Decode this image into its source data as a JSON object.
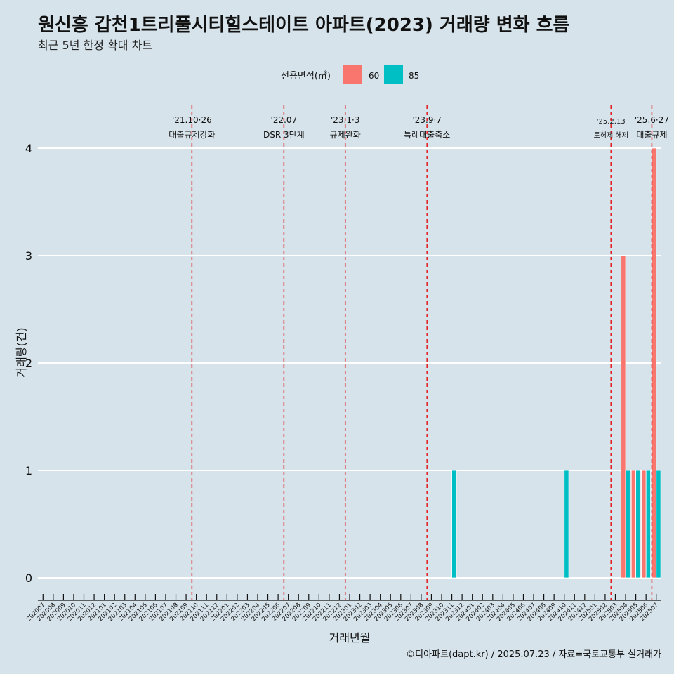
{
  "title": "원신흥 갑천1트리풀시티힐스테이트 아파트(2023) 거래량 변화 흐름",
  "subtitle": "최근 5년 한정 확대 차트",
  "caption": "©디아파트(dapt.kr) / 2025.07.23 / 자료=국토교통부 실거래가",
  "colors": {
    "background": "#d6e3ea",
    "series_60": "#f8766d",
    "series_85": "#00bfc4",
    "event_line": "#e41a1c",
    "grid": "#ffffff"
  },
  "chart_data": {
    "type": "bar",
    "xlabel": "거래년월",
    "ylabel": "거래량(건)",
    "legend_title": "전용면적(㎡)",
    "legend_position": "top",
    "ylim": [
      0,
      4
    ],
    "yticks": [
      0,
      1,
      2,
      3,
      4
    ],
    "grid": "horizontal",
    "categories": [
      "202007",
      "202008",
      "202009",
      "202010",
      "202011",
      "202012",
      "202101",
      "202102",
      "202103",
      "202104",
      "202105",
      "202106",
      "202107",
      "202108",
      "202109",
      "202110",
      "202111",
      "202112",
      "202201",
      "202202",
      "202203",
      "202204",
      "202205",
      "202206",
      "202207",
      "202208",
      "202209",
      "202210",
      "202211",
      "202212",
      "202301",
      "202302",
      "202303",
      "202304",
      "202305",
      "202306",
      "202307",
      "202308",
      "202309",
      "202310",
      "202311",
      "202312",
      "202401",
      "202402",
      "202403",
      "202404",
      "202405",
      "202406",
      "202407",
      "202408",
      "202409",
      "202410",
      "202411",
      "202412",
      "202501",
      "202502",
      "202503",
      "202504",
      "202505",
      "202506",
      "202507"
    ],
    "series": [
      {
        "name": "60",
        "color": "#f8766d",
        "values": {
          "202504": 3,
          "202505": 1,
          "202506": 1,
          "202507": 4
        }
      },
      {
        "name": "85",
        "color": "#00bfc4",
        "values": {
          "202311": 1,
          "202410": 1,
          "202504": 1,
          "202505": 1,
          "202506": 1,
          "202507": 1
        }
      }
    ],
    "events": [
      {
        "date": "'21.10·26",
        "label": "대출규제강화",
        "x": "202110"
      },
      {
        "date": "'22.07",
        "label": "DSR 3단계",
        "x": "202207"
      },
      {
        "date": "'23.1·3",
        "label": "규제완화",
        "x": "202301"
      },
      {
        "date": "'23.9·7",
        "label": "특례대출축소",
        "x": "202309"
      },
      {
        "date": "'25.2.13",
        "label": "토허제 해제",
        "x": "202503"
      },
      {
        "date": "'25.6·27",
        "label": "대출규제",
        "x": "202507"
      }
    ]
  }
}
